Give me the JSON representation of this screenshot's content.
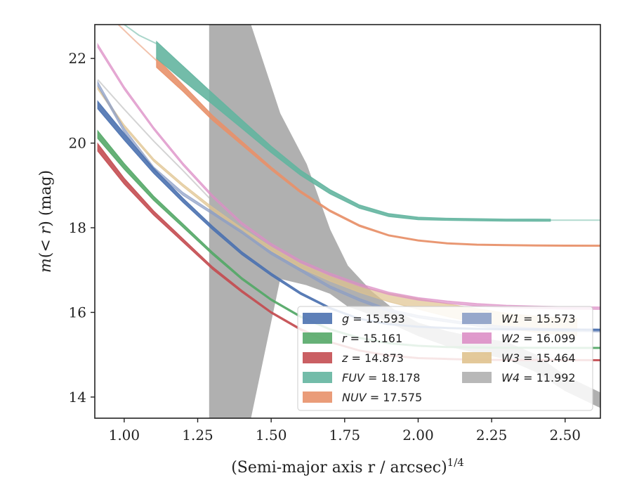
{
  "chart_data": {
    "type": "line",
    "xlabel": "(Semi-major axis r / arcsec)",
    "xlabel_exponent": "1/4",
    "ylabel_html": "m(< r) (mag)",
    "ylabel_parts": {
      "m": "m",
      "open": "(",
      "lt": "< ",
      "r": "r",
      "close": ")",
      "unit": " (mag)"
    },
    "xlim": [
      0.9,
      2.62
    ],
    "ylim": [
      22.8,
      13.5
    ],
    "y_inverted": true,
    "xticks": [
      1.0,
      1.25,
      1.5,
      1.75,
      2.0,
      2.25,
      2.5
    ],
    "xtick_labels": [
      "1.00",
      "1.25",
      "1.50",
      "1.75",
      "2.00",
      "2.25",
      "2.50"
    ],
    "yticks": [
      14,
      16,
      18,
      20,
      22
    ],
    "ytick_labels": [
      "14",
      "16",
      "18",
      "20",
      "22"
    ],
    "grid": false,
    "legend_position": "lower-right",
    "series": [
      {
        "key": "g",
        "label": "g = 15.593",
        "var": "g",
        "val": "15.593",
        "color": "#4c72b0",
        "x": [
          0.91,
          1.0,
          1.1,
          1.2,
          1.3,
          1.4,
          1.5,
          1.6,
          1.7,
          1.8,
          1.9,
          2.0,
          2.1,
          2.2,
          2.3,
          2.4,
          2.5,
          2.62
        ],
        "y": [
          20.9,
          20.15,
          19.35,
          18.65,
          18.0,
          17.4,
          16.9,
          16.45,
          16.1,
          15.85,
          15.72,
          15.66,
          15.63,
          15.61,
          15.6,
          15.6,
          15.595,
          15.59
        ],
        "width": [
          0.18,
          0.16,
          0.12,
          0.1,
          0.08,
          0.07,
          0.06,
          0.05,
          0.04,
          0.03,
          0.03,
          0.03,
          0.03,
          0.03,
          0.03,
          0.03,
          0.03,
          0.03
        ]
      },
      {
        "key": "r",
        "label": "r = 15.161",
        "var": "r",
        "val": "15.161",
        "color": "#55a868",
        "x": [
          0.91,
          1.0,
          1.1,
          1.2,
          1.3,
          1.4,
          1.5,
          1.6,
          1.7,
          1.8,
          1.9,
          2.0,
          2.1,
          2.2,
          2.3,
          2.4,
          2.5,
          2.62
        ],
        "y": [
          20.2,
          19.45,
          18.7,
          18.05,
          17.4,
          16.8,
          16.3,
          15.9,
          15.6,
          15.4,
          15.27,
          15.21,
          15.18,
          15.17,
          15.165,
          15.163,
          15.161,
          15.16
        ],
        "width": [
          0.18,
          0.14,
          0.1,
          0.08,
          0.06,
          0.05,
          0.04,
          0.04,
          0.03,
          0.03,
          0.03,
          0.03,
          0.03,
          0.03,
          0.03,
          0.03,
          0.03,
          0.03
        ]
      },
      {
        "key": "z",
        "label": "z = 14.873",
        "var": "z",
        "val": "14.873",
        "color": "#c44e52",
        "x": [
          0.91,
          1.0,
          1.1,
          1.2,
          1.3,
          1.4,
          1.5,
          1.6,
          1.7,
          1.8,
          1.9,
          2.0,
          2.1,
          2.2,
          2.3,
          2.4,
          2.5,
          2.62
        ],
        "y": [
          19.9,
          19.1,
          18.35,
          17.7,
          17.05,
          16.5,
          16.0,
          15.6,
          15.3,
          15.1,
          14.98,
          14.92,
          14.9,
          14.88,
          14.875,
          14.874,
          14.873,
          14.87
        ],
        "width": [
          0.18,
          0.14,
          0.1,
          0.08,
          0.06,
          0.05,
          0.04,
          0.04,
          0.03,
          0.03,
          0.03,
          0.03,
          0.03,
          0.03,
          0.03,
          0.03,
          0.03,
          0.03
        ]
      },
      {
        "key": "FUV",
        "label": "FUV = 18.178",
        "var": "FUV",
        "val": "18.178",
        "color": "#64b5a0",
        "x": [
          1.11,
          1.2,
          1.3,
          1.4,
          1.5,
          1.6,
          1.7,
          1.8,
          1.9,
          2.0,
          2.1,
          2.2,
          2.3,
          2.45
        ],
        "y": [
          22.2,
          21.65,
          21.05,
          20.45,
          19.85,
          19.3,
          18.85,
          18.5,
          18.3,
          18.22,
          18.2,
          18.19,
          18.18,
          18.178
        ],
        "width": [
          0.4,
          0.34,
          0.26,
          0.2,
          0.15,
          0.12,
          0.1,
          0.08,
          0.07,
          0.06,
          0.05,
          0.05,
          0.05,
          0.05
        ],
        "faint": {
          "x": [
            1.0,
            1.05,
            1.11
          ],
          "y": [
            22.8,
            22.55,
            22.35
          ]
        },
        "tail": {
          "x": [
            2.45,
            2.62
          ],
          "y": [
            18.178,
            18.178
          ]
        }
      },
      {
        "key": "NUV",
        "label": "NUV = 17.575",
        "var": "NUV",
        "val": "17.575",
        "color": "#e8916a",
        "x": [
          1.11,
          1.2,
          1.3,
          1.4,
          1.5,
          1.6,
          1.7,
          1.8,
          1.9,
          2.0,
          2.1,
          2.2,
          2.3,
          2.4,
          2.5,
          2.62
        ],
        "y": [
          21.9,
          21.3,
          20.6,
          20.0,
          19.4,
          18.85,
          18.4,
          18.05,
          17.82,
          17.7,
          17.63,
          17.6,
          17.59,
          17.58,
          17.577,
          17.575
        ],
        "width": [
          0.22,
          0.16,
          0.12,
          0.09,
          0.07,
          0.05,
          0.04,
          0.04,
          0.03,
          0.03,
          0.03,
          0.03,
          0.03,
          0.03,
          0.03,
          0.03
        ],
        "faint": {
          "x": [
            0.98,
            1.04,
            1.11
          ],
          "y": [
            22.8,
            22.4,
            21.95
          ]
        }
      },
      {
        "key": "W1",
        "label": "W1 = 15.573",
        "var": "W1",
        "val": "15.573",
        "color": "#8c9ec6",
        "x": [
          0.91,
          1.0,
          1.1,
          1.2,
          1.3,
          1.4,
          1.5,
          1.6,
          1.7,
          1.8,
          1.9,
          2.0,
          2.1,
          2.2,
          2.3,
          2.4,
          2.5,
          2.62
        ],
        "y": [
          21.4,
          20.3,
          19.4,
          18.8,
          18.35,
          17.9,
          17.4,
          17.0,
          16.6,
          16.3,
          16.05,
          15.9,
          15.8,
          15.7,
          15.64,
          15.6,
          15.58,
          15.57
        ],
        "width": [
          0.1,
          0.09,
          0.08,
          0.07,
          0.06,
          0.06,
          0.06,
          0.06,
          0.06,
          0.06,
          0.06,
          0.06,
          0.06,
          0.06,
          0.06,
          0.06,
          0.06,
          0.06
        ]
      },
      {
        "key": "W2",
        "label": "W2 = 16.099",
        "var": "W2",
        "val": "16.099",
        "color": "#dd8fc6",
        "x": [
          0.91,
          1.0,
          1.1,
          1.2,
          1.3,
          1.4,
          1.5,
          1.6,
          1.7,
          1.8,
          1.9,
          2.0,
          2.1,
          2.2,
          2.3,
          2.4,
          2.5,
          2.62
        ],
        "y": [
          22.3,
          21.3,
          20.35,
          19.5,
          18.75,
          18.1,
          17.6,
          17.2,
          16.9,
          16.65,
          16.45,
          16.32,
          16.24,
          16.18,
          16.14,
          16.12,
          16.105,
          16.099
        ],
        "width": [
          0.08,
          0.07,
          0.06,
          0.06,
          0.06,
          0.06,
          0.06,
          0.06,
          0.06,
          0.06,
          0.06,
          0.06,
          0.06,
          0.06,
          0.06,
          0.06,
          0.06,
          0.06
        ]
      },
      {
        "key": "W3",
        "label": "W3 = 15.464",
        "var": "W3",
        "val": "15.464",
        "color": "#e0c38f",
        "x": [
          0.91,
          1.0,
          1.1,
          1.2,
          1.3,
          1.4,
          1.5,
          1.6,
          1.7,
          1.8,
          1.9,
          2.0,
          2.1,
          2.2,
          2.3,
          2.4,
          2.54
        ],
        "y": [
          21.3,
          20.4,
          19.6,
          19.0,
          18.45,
          17.95,
          17.5,
          17.1,
          16.8,
          16.55,
          16.35,
          16.2,
          16.05,
          15.92,
          15.8,
          15.72,
          15.65
        ],
        "width": [
          0.06,
          0.06,
          0.06,
          0.06,
          0.07,
          0.08,
          0.09,
          0.1,
          0.12,
          0.15,
          0.2,
          0.25,
          0.3,
          0.34,
          0.36,
          0.38,
          0.4
        ]
      },
      {
        "key": "W4",
        "label": "W4 = 11.992",
        "var": "W4",
        "color": "#b0b0b0",
        "val": "11.992",
        "faint": {
          "x": [
            0.91,
            1.0,
            1.1,
            1.2,
            1.29
          ],
          "y": [
            21.5,
            20.8,
            20.05,
            19.35,
            18.7
          ]
        },
        "band_x": [
          1.29,
          1.43,
          1.53,
          1.62,
          1.7,
          1.76,
          1.84,
          1.92,
          2.0,
          2.1,
          2.2,
          2.3,
          2.4,
          2.5,
          2.62
        ],
        "band_lower": [
          13.5,
          13.5,
          16.8,
          16.65,
          16.45,
          16.15,
          15.95,
          15.7,
          15.45,
          15.2,
          15.05,
          14.9,
          14.6,
          14.15,
          13.75
        ],
        "band_upper": [
          22.8,
          22.8,
          20.7,
          19.5,
          17.95,
          17.1,
          16.5,
          16.05,
          15.75,
          15.55,
          15.4,
          15.3,
          15.0,
          14.5,
          14.1
        ]
      }
    ]
  }
}
